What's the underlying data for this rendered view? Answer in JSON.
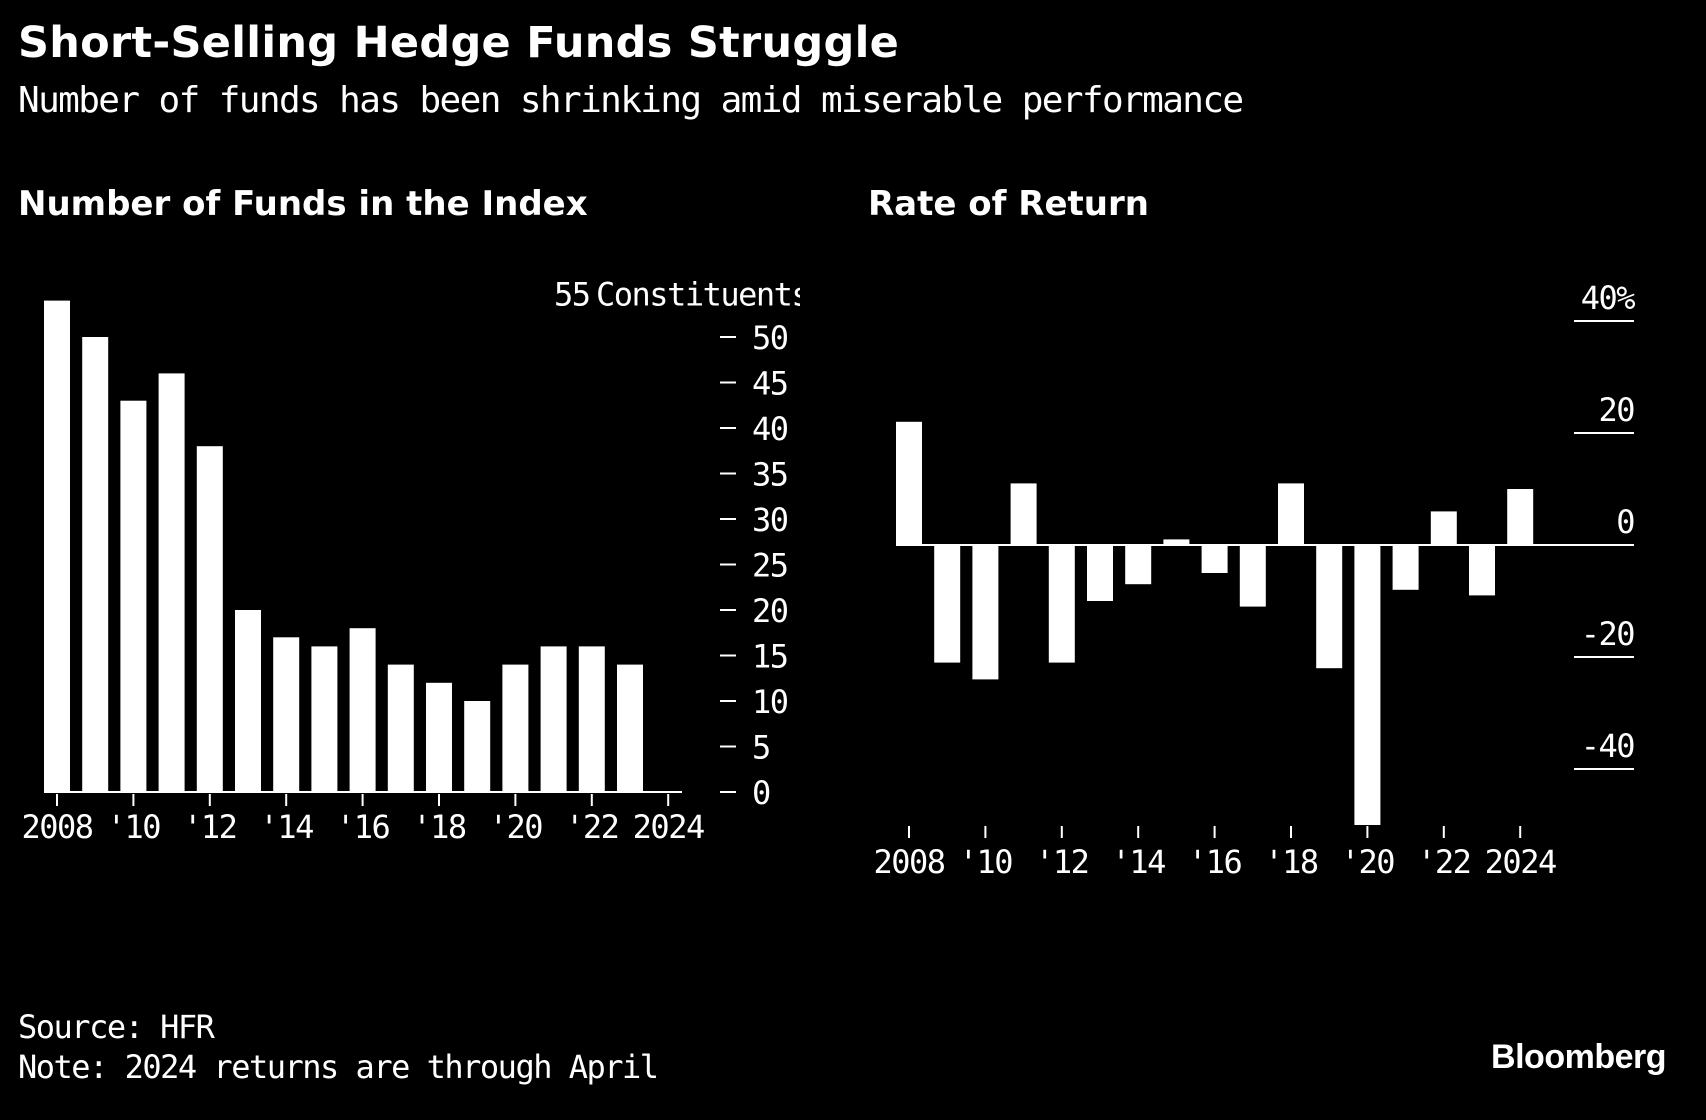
{
  "title": "Short-Selling Hedge Funds Struggle",
  "subtitle": "Number of funds has been shrinking amid miserable performance",
  "colors": {
    "background": "#000000",
    "bars": "#ffffff",
    "text": "#ffffff"
  },
  "chart_data": [
    {
      "type": "bar",
      "title": "Number of Funds in the Index",
      "ylabel": "Constituents",
      "ylim": [
        0,
        55
      ],
      "yticks": [
        0,
        5,
        10,
        15,
        20,
        25,
        30,
        35,
        40,
        45,
        50
      ],
      "top_tick_label": "55",
      "x": [
        2008,
        2009,
        2010,
        2011,
        2012,
        2013,
        2014,
        2015,
        2016,
        2017,
        2018,
        2019,
        2020,
        2021,
        2022,
        2023
      ],
      "values": [
        54,
        50,
        43,
        46,
        38,
        20,
        17,
        16,
        18,
        14,
        12,
        10,
        14,
        16,
        16,
        14
      ],
      "xtick_labels": [
        "2008",
        "'10",
        "'12",
        "'14",
        "'16",
        "'18",
        "'20",
        "'22",
        "2024"
      ],
      "xtick_years": [
        2008,
        2010,
        2012,
        2014,
        2016,
        2018,
        2020,
        2022,
        2024
      ]
    },
    {
      "type": "bar",
      "title": "Rate of Return",
      "ylabel": "%",
      "ylim": [
        -50,
        40
      ],
      "yticks": [
        40,
        20,
        0,
        -20,
        -40
      ],
      "ytick_labels": [
        "40%",
        "20",
        "0",
        "-20",
        "-40"
      ],
      "x": [
        2008,
        2009,
        2010,
        2011,
        2012,
        2013,
        2014,
        2015,
        2016,
        2017,
        2018,
        2019,
        2020,
        2021,
        2022,
        2023,
        2024
      ],
      "values": [
        22,
        -21,
        -24,
        11,
        -21,
        -10,
        -7,
        1,
        -5,
        -11,
        11,
        -22,
        -50,
        -8,
        6,
        -9,
        10
      ],
      "xtick_labels": [
        "2008",
        "'10",
        "'12",
        "'14",
        "'16",
        "'18",
        "'20",
        "'22",
        "2024"
      ],
      "xtick_years": [
        2008,
        2010,
        2012,
        2014,
        2016,
        2018,
        2020,
        2022,
        2024
      ]
    }
  ],
  "footer": {
    "source": "Source: HFR",
    "note": "Note: 2024 returns are through April"
  },
  "brand": "Bloomberg"
}
